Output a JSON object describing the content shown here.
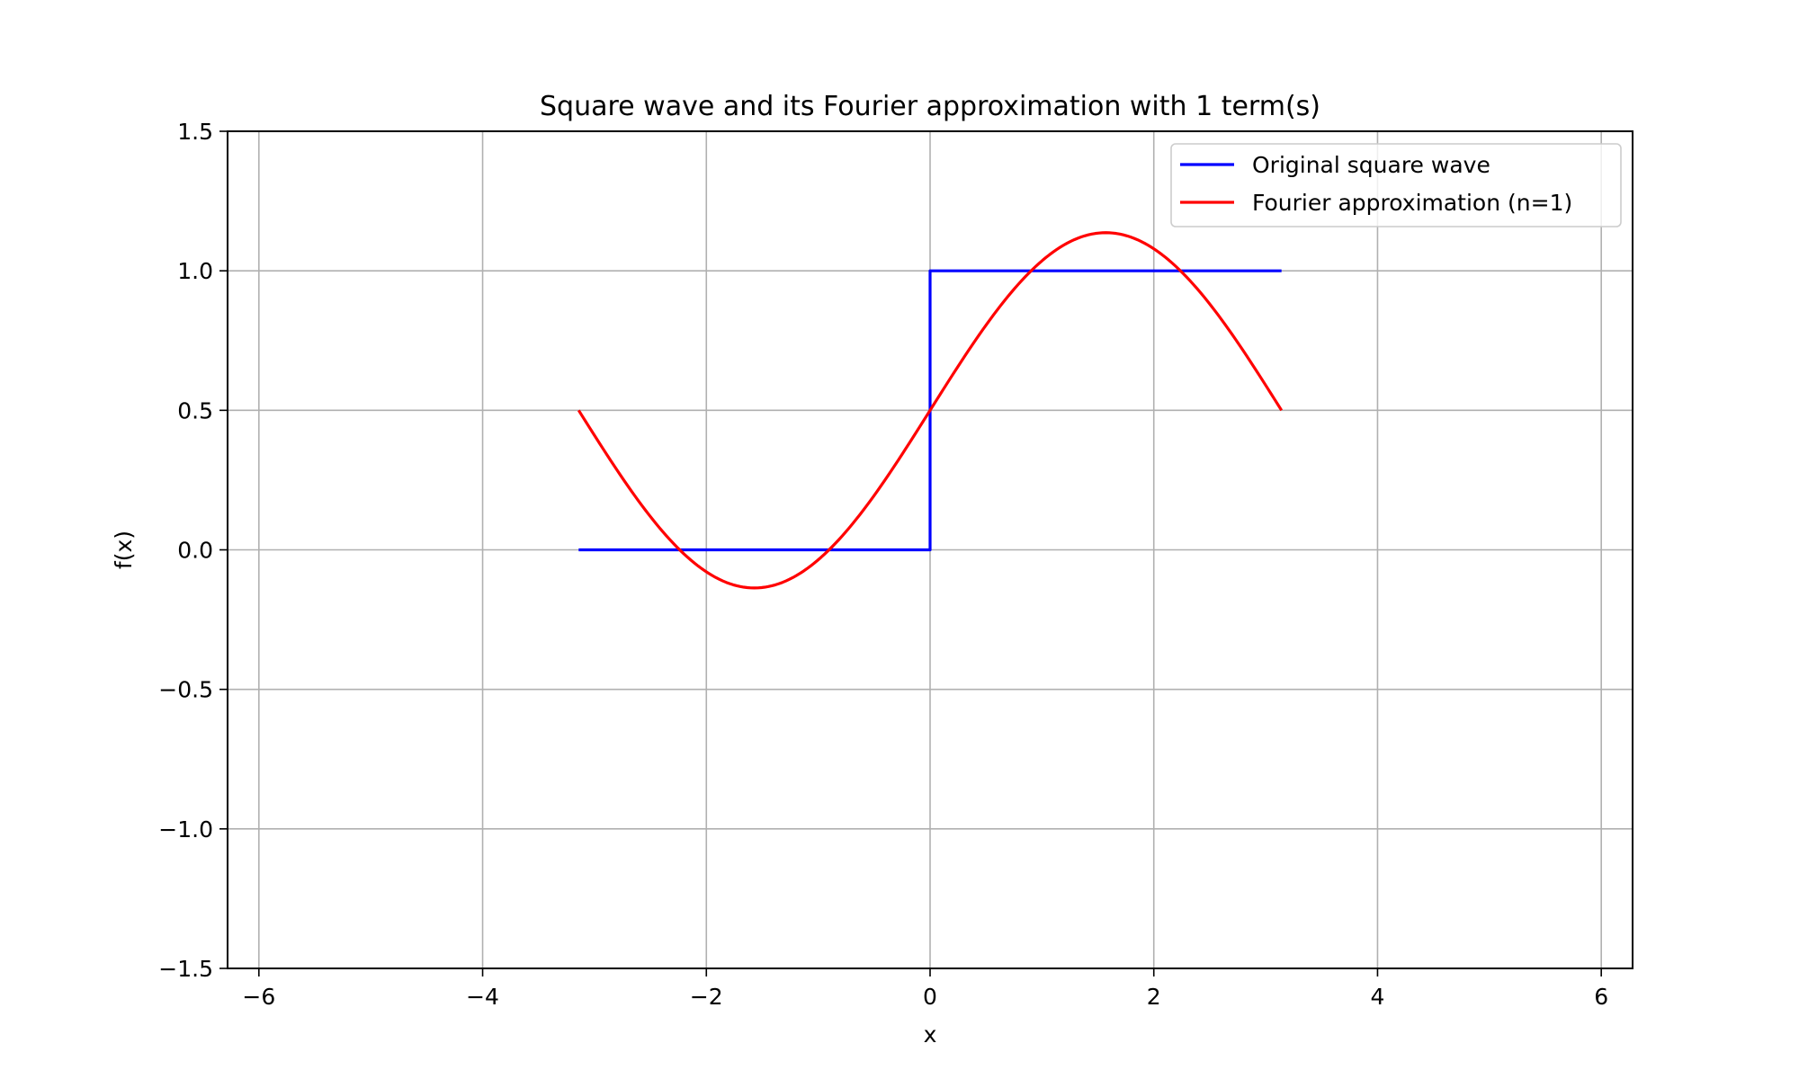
{
  "chart_data": {
    "type": "line",
    "title": "Square wave and its Fourier approximation with 1 term(s)",
    "xlabel": "x",
    "ylabel": "f(x)",
    "xlim": [
      -6.28,
      6.28
    ],
    "ylim": [
      -1.5,
      1.5
    ],
    "grid": true,
    "legend_position": "top-right",
    "x_ticks": [
      -6,
      -4,
      -2,
      0,
      2,
      4,
      6
    ],
    "x_tick_labels": [
      "−6",
      "−4",
      "−2",
      "0",
      "2",
      "4",
      "6"
    ],
    "y_ticks": [
      -1.5,
      -1.0,
      -0.5,
      0.0,
      0.5,
      1.0,
      1.5
    ],
    "y_tick_labels": [
      "−1.5",
      "−1.0",
      "−0.5",
      "0.0",
      "0.5",
      "1.0",
      "1.5"
    ],
    "series": [
      {
        "name": "Original square wave",
        "color": "#0000ff",
        "x": [
          -3.1416,
          0.0,
          0.0,
          3.1416
        ],
        "y": [
          0,
          0,
          1,
          1
        ]
      },
      {
        "name": "Fourier approximation (n=1)",
        "color": "#ff0000",
        "x": [
          -3.1416,
          -2.8274,
          -2.5133,
          -2.1991,
          -1.885,
          -1.5708,
          -1.2566,
          -0.9425,
          -0.6283,
          -0.3142,
          0.0,
          0.3142,
          0.6283,
          0.9425,
          1.2566,
          1.5708,
          1.885,
          2.1991,
          2.5133,
          2.8274,
          3.1416
        ],
        "y": [
          0.5,
          0.3033,
          0.1258,
          -0.0148,
          -0.1055,
          -0.1366,
          -0.1055,
          -0.0148,
          0.1258,
          0.3033,
          0.5,
          0.6967,
          0.8742,
          1.0148,
          1.1055,
          1.1366,
          1.1055,
          1.0148,
          0.8742,
          0.6967,
          0.5
        ]
      }
    ]
  }
}
